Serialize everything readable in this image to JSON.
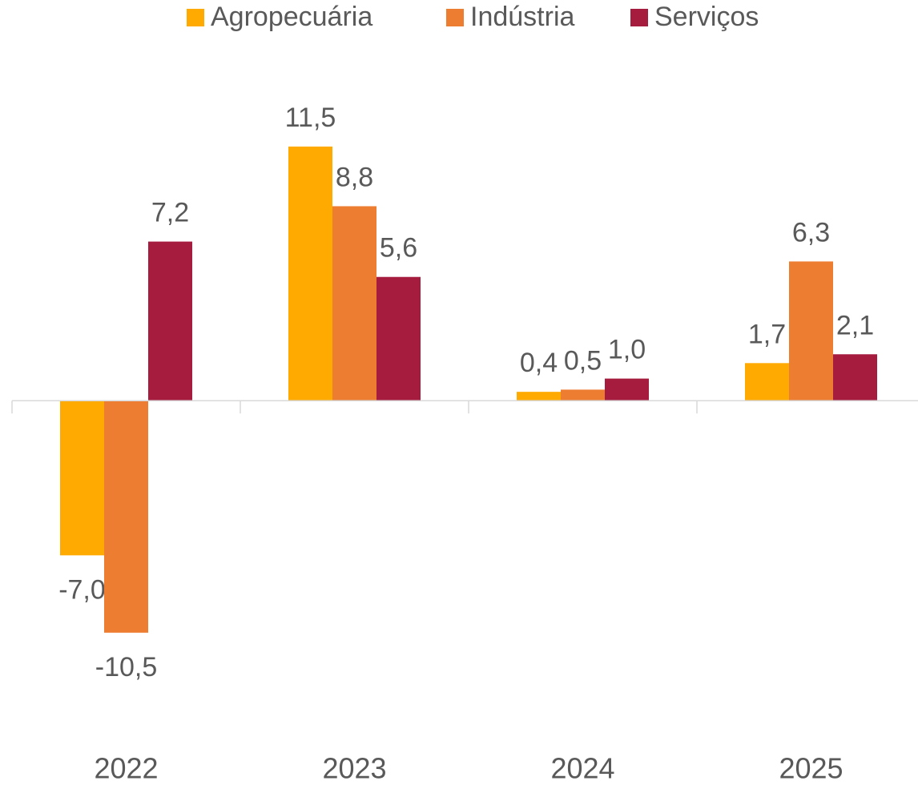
{
  "chart_data": {
    "type": "bar",
    "categories": [
      "2022",
      "2023",
      "2024",
      "2025"
    ],
    "series": [
      {
        "name": "Agropecuária",
        "color": "#FFAA00",
        "values": [
          -7.0,
          11.5,
          0.4,
          1.7
        ],
        "value_labels": [
          "-7,0",
          "11,5",
          "0,4",
          "1,7"
        ]
      },
      {
        "name": "Indústria",
        "color": "#ED7D31",
        "values": [
          -10.5,
          8.8,
          0.5,
          6.3
        ],
        "value_labels": [
          "-10,5",
          "8,8",
          "0,5",
          "6,3"
        ]
      },
      {
        "name": "Serviços",
        "color": "#A51C3F",
        "values": [
          7.2,
          5.6,
          1.0,
          2.1
        ],
        "value_labels": [
          "7,2",
          "5,6",
          "1,0",
          "2,1"
        ]
      }
    ],
    "ylim": [
      -15,
      14
    ],
    "legend": "top"
  }
}
